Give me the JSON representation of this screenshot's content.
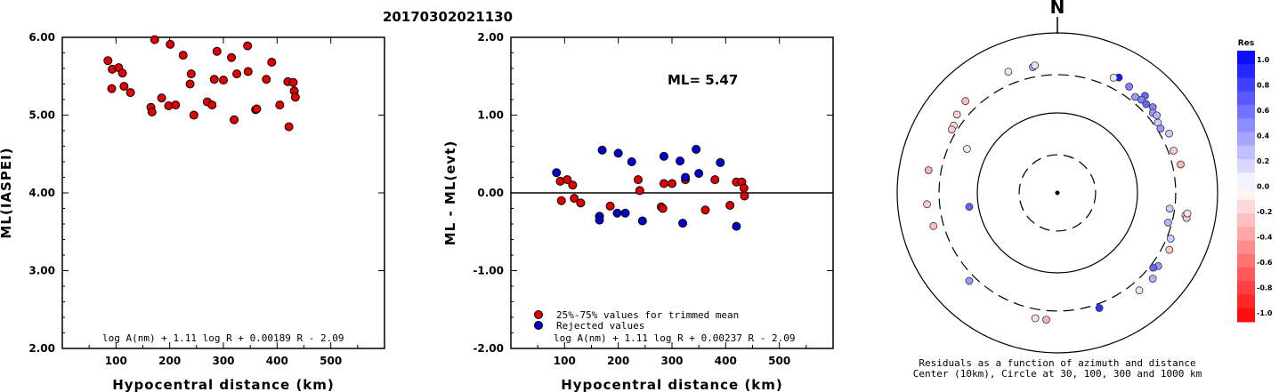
{
  "event_id": "20170302021130",
  "chart_data": [
    {
      "type": "scatter",
      "xlabel": "Hypocentral distance (km)",
      "ylabel": "ML(IASPEI)",
      "xlim": [
        0,
        600
      ],
      "ylim": [
        2.0,
        6.0
      ],
      "xticks": [
        "100",
        "200",
        "300",
        "400",
        "500"
      ],
      "yticks": [
        "2.00",
        "3.00",
        "4.00",
        "5.00",
        "6.00"
      ],
      "formula": "log A(nm) + 1.11 log R + 0.00189 R - 2.09",
      "point_color": "#e00000",
      "points": [
        [
          85,
          5.7
        ],
        [
          93,
          5.59
        ],
        [
          92,
          5.34
        ],
        [
          105,
          5.61
        ],
        [
          112,
          5.54
        ],
        [
          115,
          5.37
        ],
        [
          127,
          5.29
        ],
        [
          165,
          5.1
        ],
        [
          167,
          5.04
        ],
        [
          172,
          5.97
        ],
        [
          185,
          5.22
        ],
        [
          198,
          5.12
        ],
        [
          201,
          5.91
        ],
        [
          211,
          5.13
        ],
        [
          225,
          5.77
        ],
        [
          238,
          5.4
        ],
        [
          240,
          5.53
        ],
        [
          245,
          5.0
        ],
        [
          270,
          5.17
        ],
        [
          279,
          5.13
        ],
        [
          283,
          5.46
        ],
        [
          288,
          5.82
        ],
        [
          300,
          5.45
        ],
        [
          315,
          5.74
        ],
        [
          320,
          4.94
        ],
        [
          325,
          5.53
        ],
        [
          345,
          5.89
        ],
        [
          346,
          5.56
        ],
        [
          360,
          5.07
        ],
        [
          362,
          5.08
        ],
        [
          380,
          5.46
        ],
        [
          390,
          5.68
        ],
        [
          405,
          5.13
        ],
        [
          420,
          5.43
        ],
        [
          422,
          4.85
        ],
        [
          430,
          5.42
        ],
        [
          432,
          5.31
        ],
        [
          434,
          5.23
        ]
      ]
    },
    {
      "type": "scatter",
      "xlabel": "Hypocentral distance (km)",
      "ylabel": "ML - ML(evt)",
      "xlim": [
        0,
        600
      ],
      "ylim": [
        -2.0,
        2.0
      ],
      "xticks": [
        "100",
        "200",
        "300",
        "400",
        "500"
      ],
      "yticks": [
        "-2.00",
        "-1.00",
        "0.00",
        "1.00",
        "2.00"
      ],
      "reference_line": 0.0,
      "annotation": "ML= 5.47",
      "formula": "log A(nm) + 1.11 log R + 0.00237 R - 2.09",
      "series": [
        {
          "name": "25%-75% values for trimmed mean",
          "color": "#e00000",
          "points": [
            [
              92,
              0.15
            ],
            [
              94,
              -0.1
            ],
            [
              105,
              0.17
            ],
            [
              115,
              0.1
            ],
            [
              118,
              -0.07
            ],
            [
              130,
              -0.13
            ],
            [
              185,
              -0.17
            ],
            [
              237,
              0.17
            ],
            [
              240,
              0.03
            ],
            [
              280,
              -0.18
            ],
            [
              283,
              -0.2
            ],
            [
              285,
              0.12
            ],
            [
              300,
              0.12
            ],
            [
              325,
              0.17
            ],
            [
              362,
              -0.22
            ],
            [
              380,
              0.17
            ],
            [
              408,
              -0.16
            ],
            [
              420,
              0.14
            ],
            [
              430,
              0.14
            ],
            [
              434,
              0.06
            ],
            [
              435,
              -0.04
            ]
          ]
        },
        {
          "name": "Rejected values",
          "color": "#0000cc",
          "points": [
            [
              85,
              0.26
            ],
            [
              165,
              -0.3
            ],
            [
              165,
              -0.35
            ],
            [
              170,
              0.55
            ],
            [
              198,
              -0.26
            ],
            [
              200,
              0.51
            ],
            [
              213,
              -0.26
            ],
            [
              225,
              0.4
            ],
            [
              245,
              -0.36
            ],
            [
              285,
              0.47
            ],
            [
              315,
              0.41
            ],
            [
              320,
              -0.39
            ],
            [
              325,
              0.2
            ],
            [
              345,
              0.56
            ],
            [
              350,
              0.25
            ],
            [
              390,
              0.39
            ],
            [
              420,
              -0.43
            ]
          ]
        }
      ]
    },
    {
      "type": "scatter",
      "title": "N",
      "caption_line1": "Residuals as a function of azimuth and distance",
      "caption_line2": "Center (10km), Circle at 30, 100, 300 and 1000 km",
      "rings_km": [
        30,
        100,
        300,
        1000
      ],
      "colorbar": {
        "title": "Res",
        "ticks": [
          "1.0",
          "0.8",
          "0.6",
          "0.4",
          "0.2",
          "0.0",
          "-0.2",
          "-0.4",
          "-0.6",
          "-0.8",
          "-1.0"
        ],
        "range": [
          -1.0,
          1.0
        ],
        "positive_color": "#0000ff",
        "negative_color": "#ff0000"
      },
      "points_azimuth_km_res": [
        [
          338,
          430,
          0.08
        ],
        [
          349,
          400,
          0.3
        ],
        [
          350,
          415,
          0.1
        ],
        [
          315,
          420,
          -0.25
        ],
        [
          308,
          390,
          -0.18
        ],
        [
          303,
          350,
          -0.15
        ],
        [
          301,
          345,
          -0.2
        ],
        [
          296,
          180,
          -0.1
        ],
        [
          280,
          430,
          -0.3
        ],
        [
          265,
          430,
          -0.2
        ],
        [
          255,
          400,
          -0.25
        ],
        [
          261,
          130,
          0.6
        ],
        [
          225,
          360,
          0.4
        ],
        [
          190,
          390,
          -0.12
        ],
        [
          185,
          390,
          -0.3
        ],
        [
          100,
          420,
          -0.15
        ],
        [
          101,
          440,
          -0.2
        ],
        [
          99,
          440,
          -0.1
        ],
        [
          112,
          335,
          0.2
        ],
        [
          105,
          270,
          0.3
        ],
        [
          98,
          260,
          0.2
        ],
        [
          117,
          370,
          -0.2
        ],
        [
          126,
          360,
          0.4
        ],
        [
          128,
          330,
          0.6
        ],
        [
          132,
          400,
          0.3
        ],
        [
          140,
          390,
          0.1
        ],
        [
          160,
          340,
          0.8
        ],
        [
          42,
          430,
          0.6
        ],
        [
          28,
          430,
          0.9
        ],
        [
          34,
          400,
          0.5
        ],
        [
          39,
          350,
          0.4
        ],
        [
          42,
          370,
          0.5
        ],
        [
          45,
          370,
          0.6
        ],
        [
          48,
          400,
          0.5
        ],
        [
          50,
          360,
          0.4
        ],
        [
          52,
          375,
          0.3
        ],
        [
          55,
          340,
          0.2
        ],
        [
          58,
          330,
          0.4
        ],
        [
          62,
          380,
          0.2
        ],
        [
          70,
          350,
          -0.2
        ],
        [
          77,
          380,
          -0.3
        ],
        [
          26,
          400,
          0.1
        ]
      ]
    }
  ]
}
